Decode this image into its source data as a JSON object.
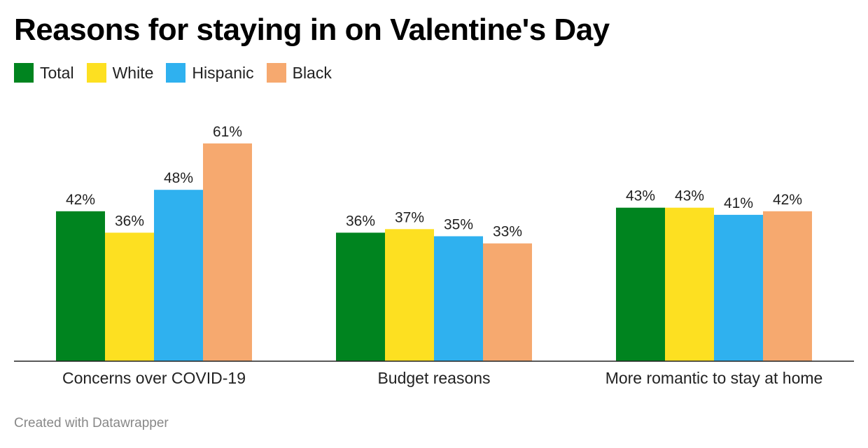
{
  "title": "Reasons for staying in on Valentine's Day",
  "footer": "Created with Datawrapper",
  "legend": [
    {
      "label": "Total",
      "color": "#00841f"
    },
    {
      "label": "White",
      "color": "#fde021"
    },
    {
      "label": "Hispanic",
      "color": "#2fb1ef"
    },
    {
      "label": "Black",
      "color": "#f6a96f"
    }
  ],
  "chart_data": {
    "type": "bar",
    "title": "Reasons for staying in on Valentine's Day",
    "xlabel": "",
    "ylabel": "",
    "categories": [
      "Concerns over COVID-19",
      "Budget reasons",
      "More romantic to stay at home"
    ],
    "series": [
      {
        "name": "Total",
        "values": [
          42,
          36,
          43
        ],
        "labels": [
          "42%",
          "36%",
          "43%"
        ],
        "color": "#00841f"
      },
      {
        "name": "White",
        "values": [
          36,
          37,
          43
        ],
        "labels": [
          "36%",
          "37%",
          "43%"
        ],
        "color": "#fde021"
      },
      {
        "name": "Hispanic",
        "values": [
          48,
          35,
          41
        ],
        "labels": [
          "48%",
          "35%",
          "41%"
        ],
        "color": "#2fb1ef"
      },
      {
        "name": "Black",
        "values": [
          61,
          33,
          42
        ],
        "labels": [
          "61%",
          "33%",
          "42%"
        ],
        "color": "#f6a96f"
      }
    ],
    "ylim": [
      0,
      65
    ],
    "grid": false,
    "legend_position": "top-left"
  }
}
